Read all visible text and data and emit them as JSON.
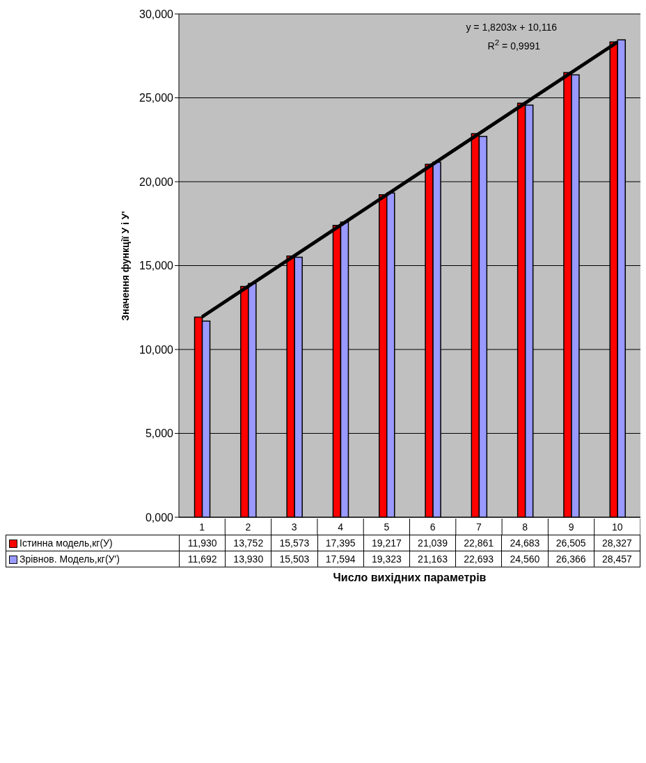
{
  "chart_data": {
    "type": "bar",
    "xlabel": "Число вихідних параметрів",
    "ylabel": "Значення функції У і У'",
    "categories": [
      "1",
      "2",
      "3",
      "4",
      "5",
      "6",
      "7",
      "8",
      "9",
      "10"
    ],
    "series": [
      {
        "name": "Істинна модель,кг(У)",
        "color": "#ff0000",
        "values": [
          11.93,
          13.752,
          15.573,
          17.395,
          19.217,
          21.039,
          22.861,
          24.683,
          26.505,
          28.327
        ],
        "value_labels": [
          "11,930",
          "13,752",
          "15,573",
          "17,395",
          "19,217",
          "21,039",
          "22,861",
          "24,683",
          "26,505",
          "28,327"
        ]
      },
      {
        "name": "Зрівнов. Модель,кг(У')",
        "color": "#9999ff",
        "values": [
          11.692,
          13.93,
          15.503,
          17.594,
          19.323,
          21.163,
          22.693,
          24.56,
          26.366,
          28.457
        ],
        "value_labels": [
          "11,692",
          "13,930",
          "15,503",
          "17,594",
          "19,323",
          "21,163",
          "22,693",
          "24,560",
          "26,366",
          "28,457"
        ]
      },
      {
        "type": "line",
        "color": "#000000",
        "x": [
          "1",
          "10"
        ],
        "values": [
          11.94,
          28.32
        ]
      }
    ],
    "ylim": [
      0,
      30
    ],
    "yticks": [
      {
        "value": 0,
        "label": "0,000"
      },
      {
        "value": 5,
        "label": "5,000"
      },
      {
        "value": 10,
        "label": "10,000"
      },
      {
        "value": 15,
        "label": "15,000"
      },
      {
        "value": 20,
        "label": "20,000"
      },
      {
        "value": 25,
        "label": "25,000"
      },
      {
        "value": 30,
        "label": "30,000"
      }
    ],
    "annotations": [
      "y = 1,8203x + 10,116",
      "R$^{2}$ = 0,9991"
    ],
    "grid": "y",
    "legend": "bottom",
    "marker": "none"
  }
}
